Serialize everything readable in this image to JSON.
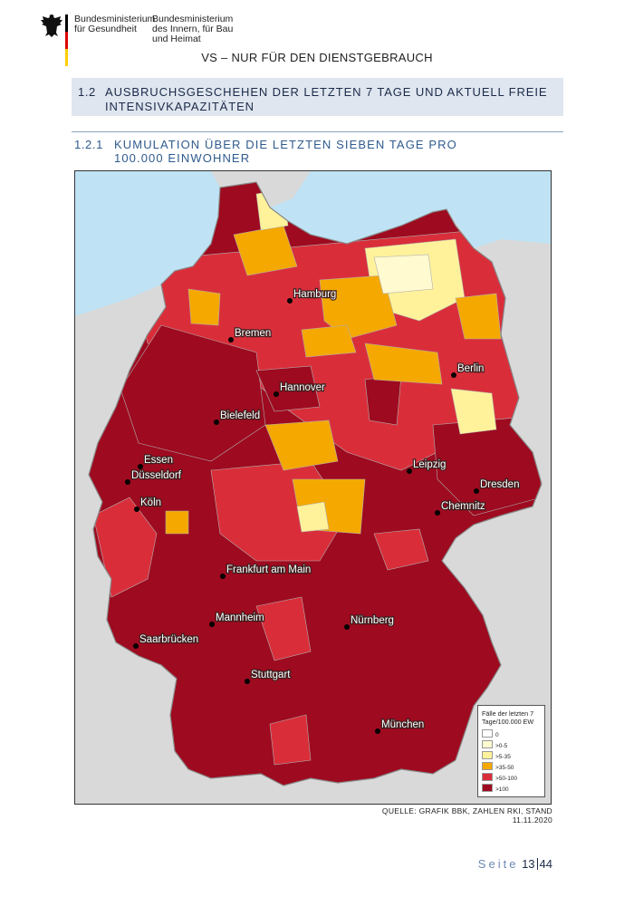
{
  "header": {
    "ministry_1": "Bundesministerium für Gesundheit",
    "ministry_2": "Bundesministerium des Innern, für Bau und Heimat",
    "classification": "VS – NUR FÜR DEN DIENSTGEBRAUCH",
    "flag_colors": [
      "#000000",
      "#dd0000",
      "#ffce00"
    ]
  },
  "section": {
    "number": "1.2",
    "title": "AUSBRUCHSGESCHEHEN DER LETZTEN 7 TAGE UND AKTUELL FREIE INTENSIVKAPAZITÄTEN"
  },
  "subsection": {
    "number": "1.2.1",
    "title": "KUMULATION ÜBER DIE LETZTEN SIEBEN TAGE PRO 100.000 EINWOHNER"
  },
  "map": {
    "cities": [
      {
        "name": "Hamburg"
      },
      {
        "name": "Bremen"
      },
      {
        "name": "Berlin"
      },
      {
        "name": "Hannover"
      },
      {
        "name": "Bielefeld"
      },
      {
        "name": "Essen"
      },
      {
        "name": "Düsseldorf"
      },
      {
        "name": "Köln"
      },
      {
        "name": "Leipzig"
      },
      {
        "name": "Dresden"
      },
      {
        "name": "Chemnitz"
      },
      {
        "name": "Frankfurt am Main"
      },
      {
        "name": "Mannheim"
      },
      {
        "name": "Nürnberg"
      },
      {
        "name": "Saarbrücken"
      },
      {
        "name": "Stuttgart"
      },
      {
        "name": "München"
      }
    ],
    "colors": {
      "sea": "#bfe3f5",
      "neighbors": "#d9d9d9",
      "highest": "#9e0a1f",
      "high": "#d92e3a",
      "mid": "#f5a800",
      "low": "#fff29a",
      "lowest": "#fffad0"
    }
  },
  "legend": {
    "title": "Fälle der letzten 7 Tage/100.000 EW",
    "items": [
      {
        "label": "0",
        "color": "#ffffff"
      },
      {
        "label": ">0-5",
        "color": "#fffad0"
      },
      {
        "label": ">5-35",
        "color": "#fff29a"
      },
      {
        "label": ">35-50",
        "color": "#f5a800"
      },
      {
        "label": ">50-100",
        "color": "#d92e3a"
      },
      {
        "label": ">100",
        "color": "#9e0a1f"
      }
    ]
  },
  "source": "QUELLE: GRAFIK BBK, ZAHLEN RKI, STAND 11.11.2020",
  "footer": {
    "seite_label": "Seite",
    "page": "13",
    "total": "44"
  }
}
